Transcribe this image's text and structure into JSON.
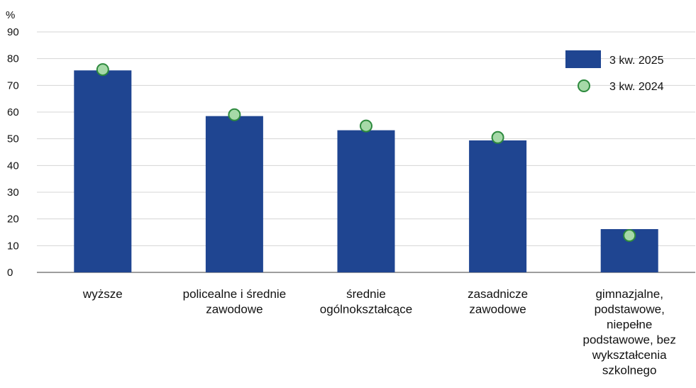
{
  "chart_data": {
    "type": "bar",
    "y_unit": "%",
    "categories": [
      [
        "wyższe"
      ],
      [
        "policealne i średnie",
        "zawodowe"
      ],
      [
        "średnie",
        "ogólnokształcące"
      ],
      [
        "zasadnicze",
        "zawodowe"
      ],
      [
        "gimnazjalne,",
        "podstawowe,",
        "niepełne",
        "podstawowe, bez",
        "wykształcenia",
        "szkolnego"
      ]
    ],
    "series": [
      {
        "name": "3 kw. 2025",
        "kind": "bar",
        "color": "#1f4591",
        "values": [
          75.6,
          58.5,
          53.2,
          49.4,
          16.2
        ]
      },
      {
        "name": "3 kw. 2024",
        "kind": "marker",
        "color": "#a6d9a8",
        "stroke": "#2e8a3e",
        "values": [
          75.9,
          59.0,
          54.8,
          50.5,
          13.8
        ]
      }
    ],
    "ylim": [
      0,
      90
    ],
    "yticks": [
      0,
      10,
      20,
      30,
      40,
      50,
      60,
      70,
      80,
      90
    ],
    "grid": true,
    "legend_position": "top-right"
  }
}
